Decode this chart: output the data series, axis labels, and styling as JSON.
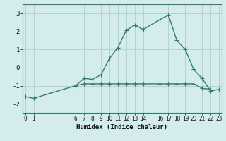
{
  "xlabel": "Humidex (Indice chaleur)",
  "x_main": [
    0,
    1,
    6,
    7,
    8,
    9,
    10,
    11,
    12,
    13,
    14,
    16,
    17,
    18,
    19,
    20,
    21,
    22,
    23
  ],
  "y_main": [
    -1.6,
    -1.7,
    -1.0,
    -0.6,
    -0.65,
    -0.4,
    0.5,
    1.1,
    2.05,
    2.35,
    2.1,
    2.65,
    2.9,
    1.5,
    1.0,
    -0.1,
    -0.6,
    -1.3,
    -1.2
  ],
  "x_flat": [
    6,
    7,
    8,
    9,
    10,
    11,
    12,
    13,
    14,
    16,
    17,
    18,
    19,
    20,
    21,
    22
  ],
  "y_flat": [
    -1.0,
    -0.9,
    -0.9,
    -0.9,
    -0.9,
    -0.9,
    -0.9,
    -0.9,
    -0.9,
    -0.9,
    -0.9,
    -0.9,
    -0.9,
    -0.9,
    -1.15,
    -1.2
  ],
  "line_color": "#2e7d6e",
  "bg_color": "#d5ecec",
  "grid_color": "#b2cece",
  "ylim": [
    -2.5,
    3.5
  ],
  "yticks": [
    -2,
    -1,
    0,
    1,
    2,
    3
  ],
  "xticks": [
    0,
    1,
    6,
    7,
    8,
    9,
    10,
    11,
    12,
    13,
    14,
    16,
    17,
    18,
    19,
    20,
    21,
    22,
    23
  ],
  "xlim": [
    -0.3,
    23.3
  ],
  "marker": "+",
  "markersize": 4,
  "linewidth": 1.0
}
